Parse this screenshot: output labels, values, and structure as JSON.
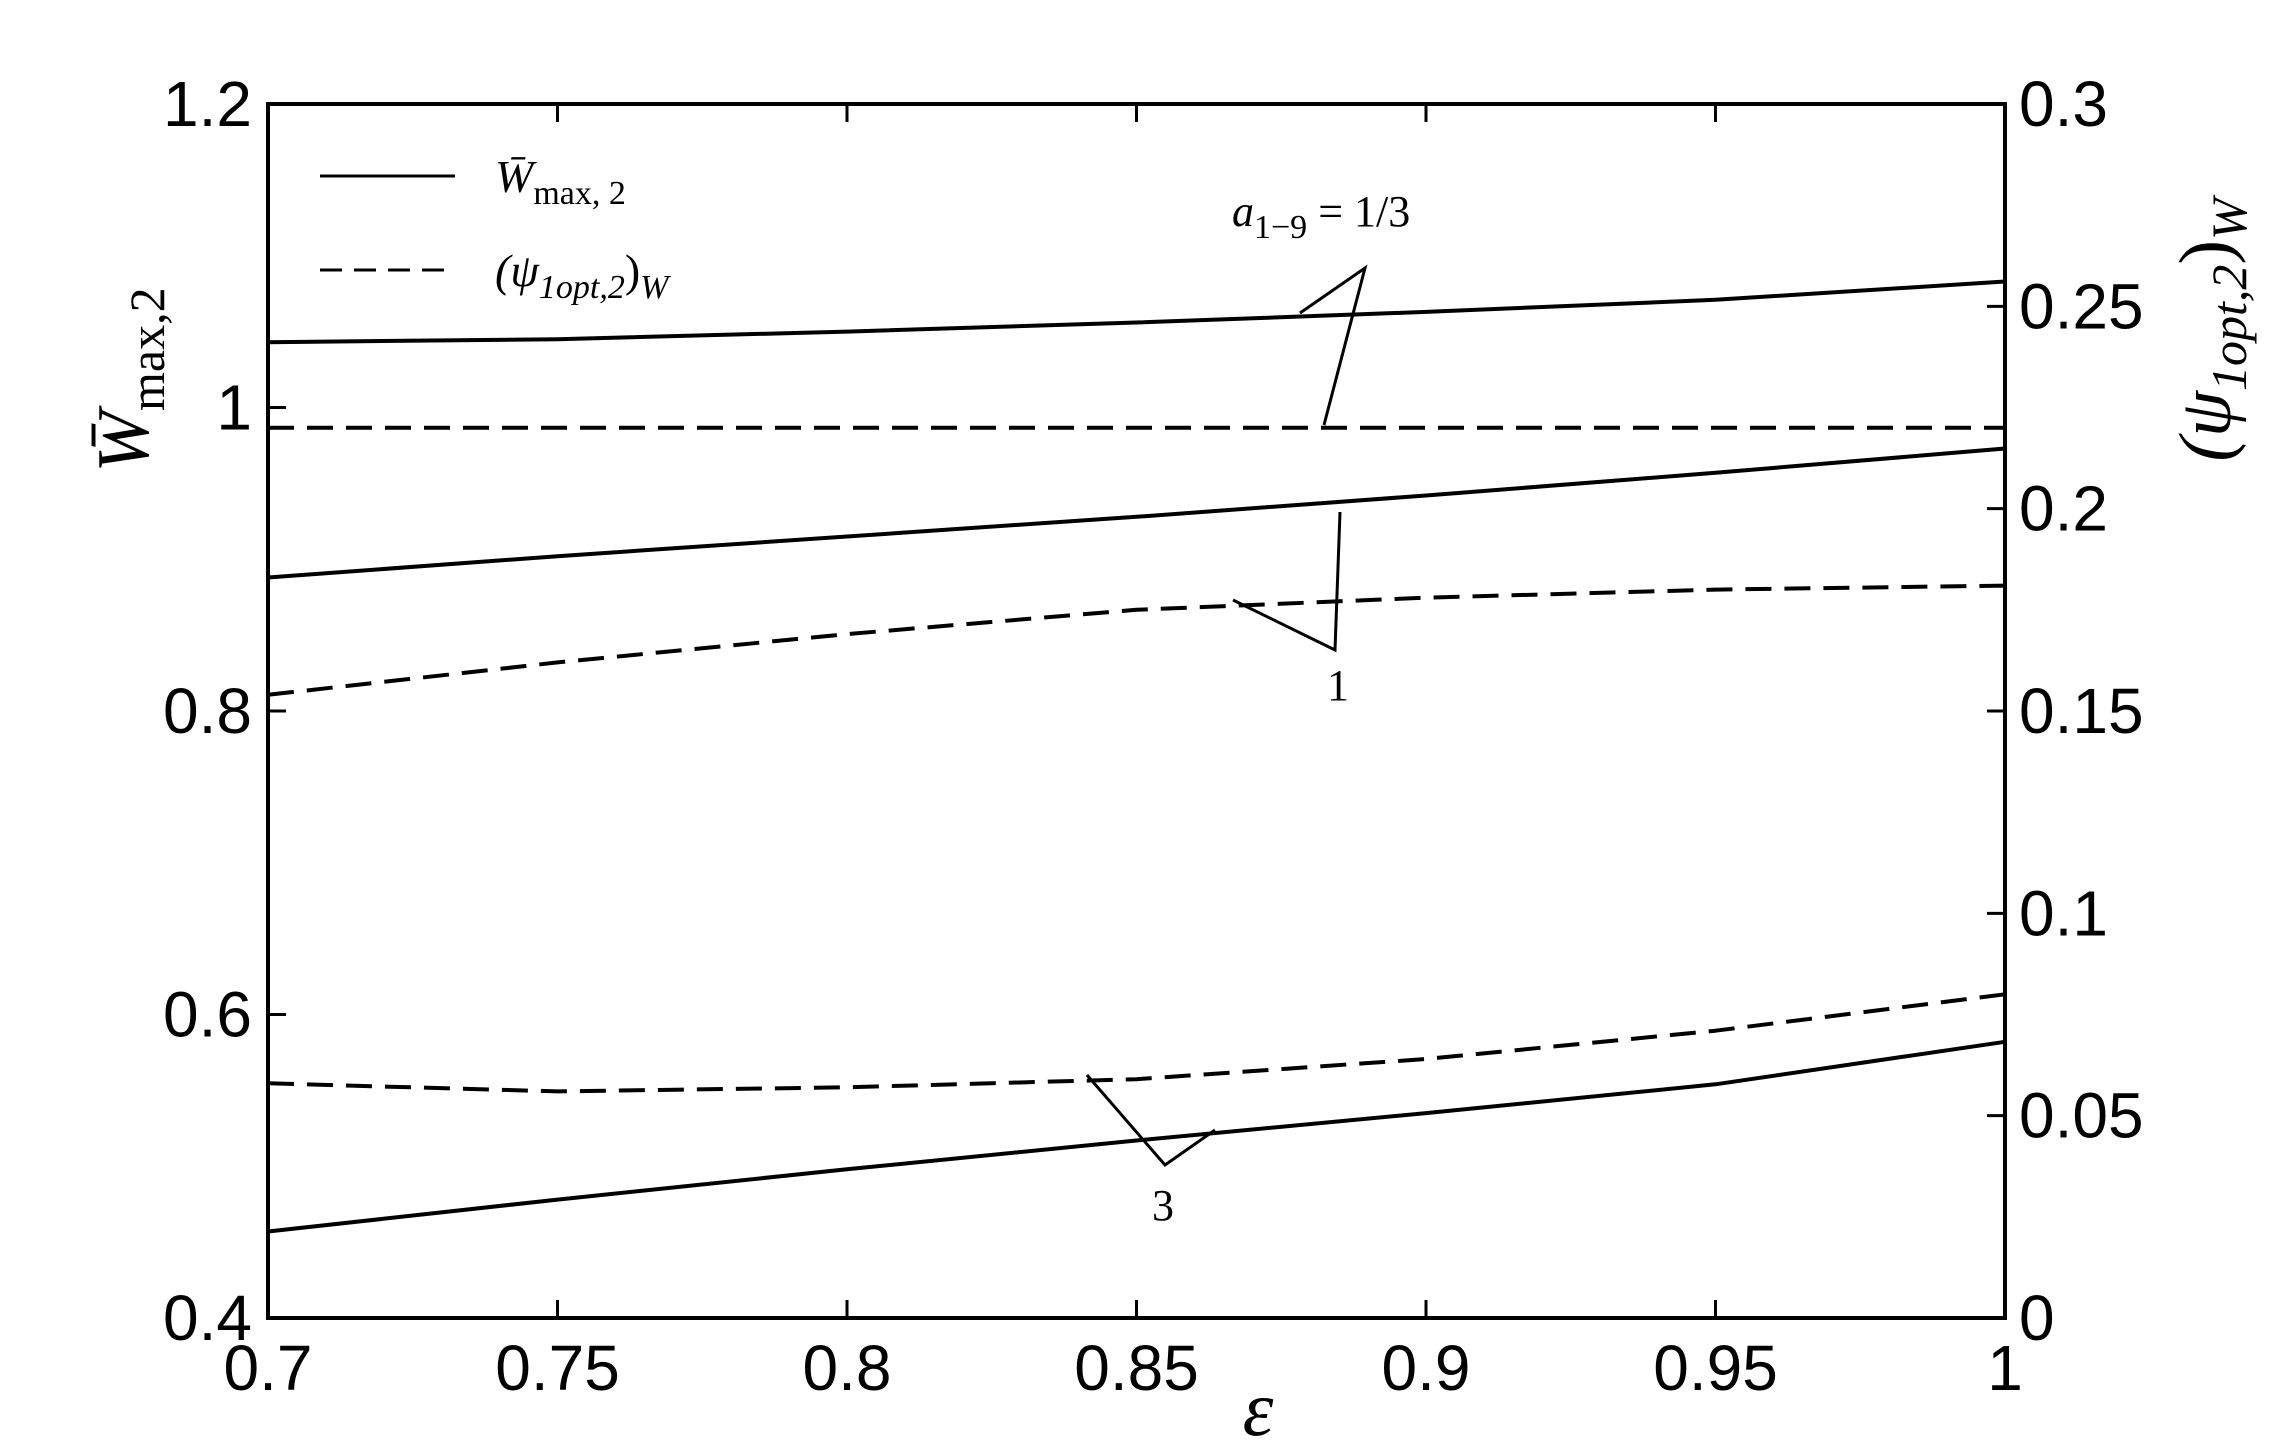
{
  "chart_data": {
    "type": "line",
    "xlabel": "ε",
    "ylabel_left_main": "W̄",
    "ylabel_left_sub": "max,2",
    "ylabel_right_main": "(ψ",
    "ylabel_right_sub": "1opt,2",
    "ylabel_right_close": ")",
    "ylabel_right_suffix": "W",
    "xlim": [
      0.7,
      1.0
    ],
    "ylim_left": [
      0.4,
      1.2
    ],
    "ylim_right": [
      0,
      0.3
    ],
    "xticks": [
      "0.7",
      "0.75",
      "0.8",
      "0.85",
      "0.9",
      "0.95",
      "1"
    ],
    "yticks_left": [
      "0.4",
      "0.6",
      "0.8",
      "1",
      "1.2"
    ],
    "yticks_right": [
      "0",
      "0.05",
      "0.1",
      "0.15",
      "0.2",
      "0.25",
      "0.3"
    ],
    "grid": false,
    "legend_placement": "top-left",
    "legend": [
      {
        "main": "W̄",
        "sub": "max, 2",
        "style": "solid"
      },
      {
        "main": "(ψ",
        "sub": "1opt,2",
        "close": ")",
        "suffix": "W",
        "style": "dashed"
      }
    ],
    "series": [
      {
        "group": "1/3",
        "style": "solid",
        "axis": "left",
        "x": [
          0.7,
          0.75,
          0.8,
          0.85,
          0.9,
          0.95,
          1.0
        ],
        "y": [
          1.043,
          1.045,
          1.05,
          1.056,
          1.063,
          1.071,
          1.083
        ]
      },
      {
        "group": "1/3",
        "style": "dashed",
        "axis": "right",
        "x": [
          0.7,
          0.75,
          0.8,
          0.85,
          0.9,
          0.95,
          1.0
        ],
        "y": [
          0.22,
          0.22,
          0.22,
          0.22,
          0.22,
          0.22,
          0.22
        ]
      },
      {
        "group": "1",
        "style": "solid",
        "axis": "left",
        "x": [
          0.7,
          0.75,
          0.8,
          0.85,
          0.9,
          0.95,
          1.0
        ],
        "y": [
          0.888,
          0.902,
          0.915,
          0.928,
          0.942,
          0.957,
          0.973
        ]
      },
      {
        "group": "1",
        "style": "dashed",
        "axis": "right",
        "x": [
          0.7,
          0.75,
          0.8,
          0.85,
          0.9,
          0.95,
          1.0
        ],
        "y": [
          0.154,
          0.162,
          0.169,
          0.175,
          0.178,
          0.18,
          0.181
        ]
      },
      {
        "group": "3",
        "style": "solid",
        "axis": "left",
        "x": [
          0.7,
          0.75,
          0.8,
          0.85,
          0.9,
          0.95,
          1.0
        ],
        "y": [
          0.457,
          0.478,
          0.498,
          0.517,
          0.535,
          0.554,
          0.582
        ]
      },
      {
        "group": "3",
        "style": "dashed",
        "axis": "right",
        "x": [
          0.7,
          0.75,
          0.8,
          0.85,
          0.9,
          0.95,
          1.0
        ],
        "y": [
          0.058,
          0.056,
          0.057,
          0.059,
          0.064,
          0.071,
          0.08
        ]
      }
    ],
    "annotations": [
      {
        "id": "a",
        "main": "a",
        "sub": "1−9",
        "text": " = 1/3"
      },
      {
        "id": "one",
        "text": "1"
      },
      {
        "id": "three",
        "text": "3"
      }
    ]
  }
}
